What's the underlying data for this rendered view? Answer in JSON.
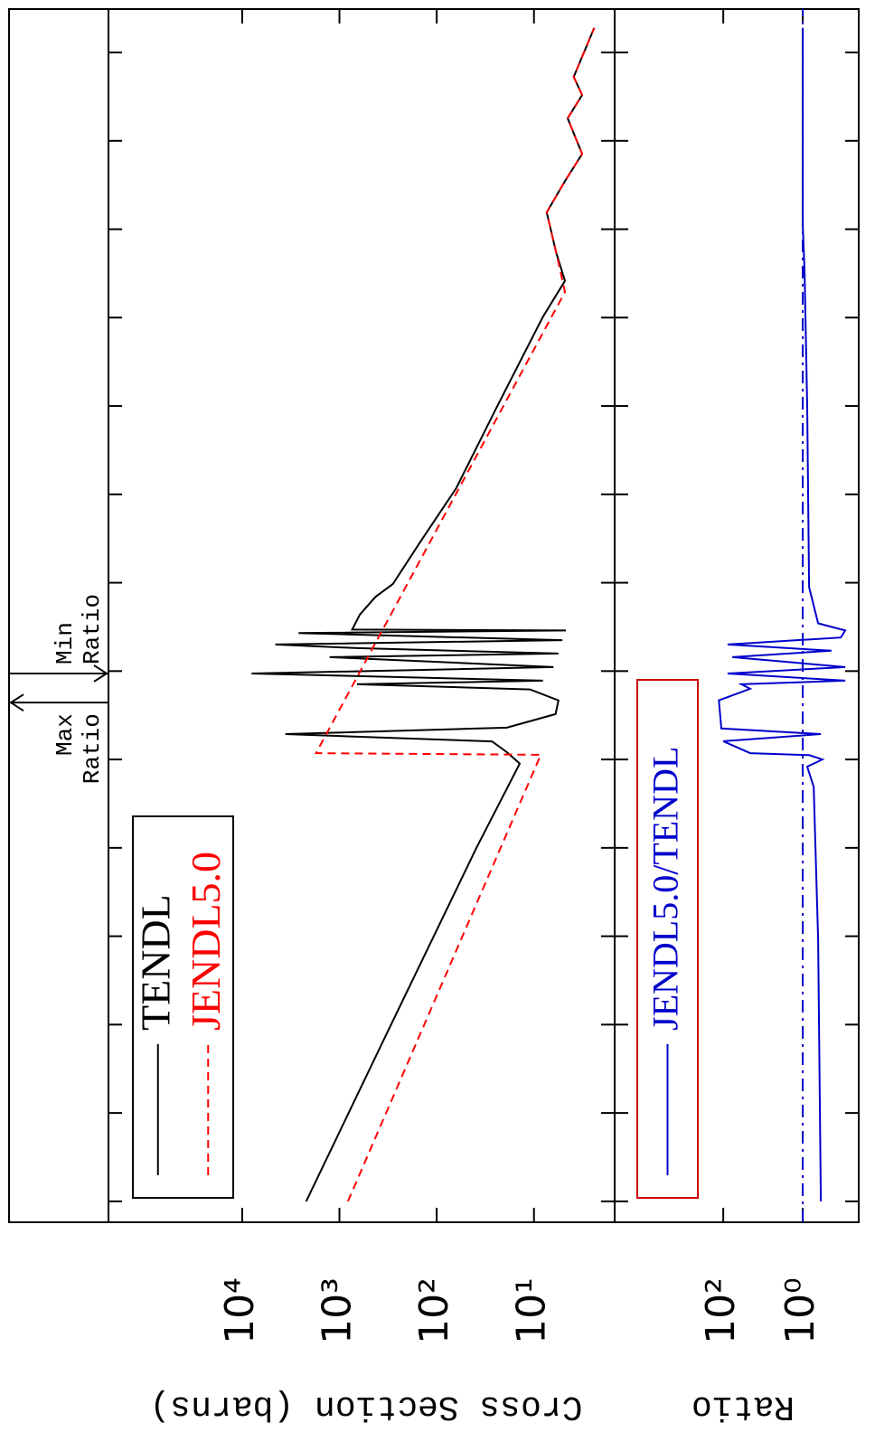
{
  "chart_data": [
    {
      "type": "line",
      "ylabel": "Cross Section (barns)",
      "xscale": "log",
      "yscale": "log",
      "xlim": [
        5.8e-06,
        310000000.0
      ],
      "xticks": [
        1e-05,
        0.0001,
        0.001,
        0.01,
        0.1,
        1,
        10,
        100,
        1000,
        10000,
        100000,
        1000000,
        10000000,
        100000000
      ],
      "ylim": [
        1.48,
        237000
      ],
      "yticks": [
        {
          "value": 10,
          "label": "10¹"
        },
        {
          "value": 100,
          "label": "10²"
        },
        {
          "value": 1000,
          "label": "10³"
        },
        {
          "value": 10000,
          "label": "10⁴"
        }
      ],
      "legend_border_color": "#000000",
      "series": [
        {
          "name": "TENDL",
          "color": "#000000",
          "linestyle": "solid",
          "x": [
            1e-05,
            0.001,
            0.1,
            0.9,
            1.21,
            1.6,
            1.94,
            2.29,
            3.26,
            4.66,
            6.2,
            7.1,
            7.8,
            9.4,
            11.1,
            14.4,
            15.8,
            18.2,
            20,
            22.4,
            26.9,
            28.8,
            29.5,
            43.6,
            69,
            97,
            288,
            1175,
            9800,
            102000,
            260000,
            540000,
            1550000,
            3500000,
            7100000,
            18000000,
            33000000,
            53000000,
            190000000
          ],
          "values": [
            2200,
            295,
            39,
            14,
            19,
            27,
            3600,
            19,
            6.0,
            5.6,
            11,
            660,
            8.1,
            8000,
            6.3,
            1260,
            5.6,
            660,
            4560,
            5.1,
            2630,
            4.7,
            740,
            617,
            427,
            282,
            148,
            63,
            24,
            8.1,
            4.8,
            5.9,
            7.4,
            4.8,
            3.2,
            4.5,
            3.2,
            3.9,
            2.4
          ]
        },
        {
          "name": "JENDL5.0",
          "color": "#ff0000",
          "linestyle": "dashed",
          "x": [
            1e-05,
            1.13,
            1.18,
            195000,
            540000,
            1550000,
            3500000,
            7100000,
            18000000,
            33000000,
            53000000,
            190000000
          ],
          "values": [
            818,
            8.5,
            1740,
            4.8,
            5.9,
            7.4,
            4.8,
            3.2,
            4.5,
            3.2,
            3.9,
            2.4
          ]
        }
      ],
      "annotations": [
        {
          "lines": [
            "Max",
            "Ratio"
          ],
          "x": 4.4
        },
        {
          "lines": [
            "Min",
            "Ratio"
          ],
          "x": 9.4
        }
      ]
    },
    {
      "type": "line",
      "ylabel": "Ratio",
      "xscale": "log",
      "yscale": "log",
      "xlim": [
        5.8e-06,
        310000000.0
      ],
      "xticks": [
        1e-05,
        0.0001,
        0.001,
        0.01,
        0.1,
        1,
        10,
        100,
        1000,
        10000,
        100000,
        1000000,
        10000000,
        100000000
      ],
      "ylim": [
        0.039,
        54000
      ],
      "yticks": [
        {
          "value": 1,
          "label": "10⁰"
        },
        {
          "value": 100,
          "label": "10²"
        }
      ],
      "reference_line": 1,
      "legend_border_color": "#cc0000",
      "series": [
        {
          "name": "JENDL5.0/TENDL",
          "color": "#0000cc",
          "linestyle": "solid",
          "x": [
            1e-05,
            0.0091,
            0.49,
            0.83,
            1.0,
            1.12,
            1.18,
            1.61,
            1.94,
            2.24,
            4.66,
            6.3,
            7.1,
            7.8,
            9.4,
            11.1,
            14.4,
            17,
            20,
            24,
            28.8,
            34.7,
            89,
            9800,
            330000,
            1100000,
            190000000
          ],
          "values": [
            0.35,
            0.41,
            0.53,
            0.77,
            0.32,
            0.69,
            21,
            100,
            0.35,
            112,
            129,
            21,
            35,
            0.085,
            78,
            0.085,
            59,
            0.19,
            78,
            0.11,
            0.085,
            0.41,
            0.69,
            0.77,
            0.9,
            1,
            1
          ]
        }
      ]
    }
  ]
}
